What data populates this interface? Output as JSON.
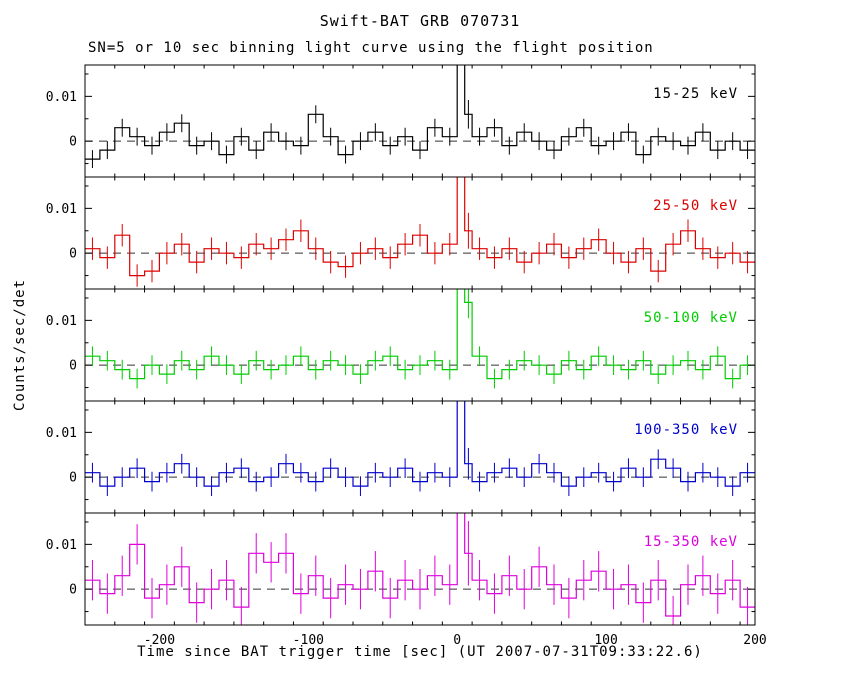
{
  "figure": {
    "title": "Swift-BAT GRB 070731",
    "subtitle": "SN=5 or 10 sec binning light curve using the flight position",
    "ylabel": "Counts/sec/det",
    "xlabel": "Time since BAT trigger time [sec] (UT 2007-07-31T09:33:22.6)"
  },
  "chart_data": {
    "type": "line",
    "style": "step-histogram light curves with vertical error bars, 5 stacked panels sharing the x axis",
    "xlim": [
      -250,
      200
    ],
    "ylim_per_panel": [
      -0.008,
      0.017
    ],
    "x_major_ticks": [
      -200,
      -100,
      0,
      100,
      200
    ],
    "x_minor_tick_step": 20,
    "y_major_ticks": [
      0,
      0.01
    ],
    "y_tick_labels": [
      "0",
      "0.01"
    ],
    "y_minor_ticks": [
      -0.005,
      0.005,
      0.015
    ],
    "zero_line": {
      "style": "dashed",
      "color": "#333333"
    },
    "bin_edges": [
      -250,
      -240,
      -230,
      -220,
      -210,
      -200,
      -190,
      -180,
      -170,
      -160,
      -150,
      -140,
      -130,
      -120,
      -110,
      -100,
      -90,
      -80,
      -70,
      -60,
      -50,
      -40,
      -30,
      -20,
      -10,
      0,
      5,
      10,
      20,
      30,
      40,
      50,
      60,
      70,
      80,
      90,
      100,
      110,
      120,
      130,
      140,
      150,
      160,
      170,
      180,
      190,
      200
    ],
    "panels": [
      {
        "label": "15-25 keV",
        "color": "#000000",
        "error": 0.002,
        "values": [
          -0.004,
          -0.002,
          0.003,
          0.001,
          -0.001,
          0.002,
          0.004,
          -0.001,
          0.0,
          -0.003,
          0.001,
          -0.002,
          0.002,
          0.0,
          -0.001,
          0.006,
          0.001,
          -0.003,
          0.0,
          0.002,
          -0.001,
          0.001,
          -0.002,
          0.003,
          0.001,
          0.045,
          0.006,
          0.001,
          0.003,
          -0.001,
          0.002,
          0.0,
          -0.002,
          0.001,
          0.003,
          -0.001,
          0.0,
          0.002,
          -0.003,
          0.001,
          0.0,
          -0.001,
          0.002,
          -0.002,
          0.0,
          -0.002
        ]
      },
      {
        "label": "25-50 keV",
        "color": "#dd0000",
        "error": 0.0025,
        "values": [
          0.001,
          -0.001,
          0.004,
          -0.005,
          -0.004,
          0.0,
          0.002,
          -0.002,
          0.001,
          0.0,
          -0.001,
          0.002,
          0.001,
          0.003,
          0.005,
          0.001,
          -0.002,
          -0.003,
          0.0,
          0.001,
          -0.001,
          0.002,
          0.004,
          0.0,
          0.002,
          0.05,
          0.005,
          0.001,
          -0.001,
          0.001,
          -0.002,
          0.0,
          0.002,
          -0.001,
          0.001,
          0.003,
          0.0,
          -0.002,
          0.001,
          -0.004,
          0.002,
          0.005,
          0.001,
          -0.001,
          0.0,
          -0.002
        ]
      },
      {
        "label": "50-100 keV",
        "color": "#00cc00",
        "error": 0.0022,
        "values": [
          0.002,
          0.001,
          -0.001,
          -0.003,
          0.0,
          -0.002,
          0.001,
          -0.001,
          0.002,
          0.0,
          -0.002,
          0.001,
          -0.001,
          0.0,
          0.002,
          -0.001,
          0.001,
          0.0,
          -0.002,
          0.001,
          0.002,
          -0.001,
          0.0,
          0.001,
          -0.001,
          0.04,
          0.014,
          0.002,
          -0.003,
          -0.001,
          0.001,
          0.0,
          -0.002,
          0.001,
          -0.001,
          0.002,
          0.0,
          -0.001,
          0.001,
          -0.002,
          0.0,
          0.001,
          -0.001,
          0.002,
          -0.003,
          0.0
        ]
      },
      {
        "label": "100-350 keV",
        "color": "#0000cc",
        "error": 0.0022,
        "values": [
          0.001,
          -0.002,
          0.0,
          0.002,
          -0.001,
          0.001,
          0.003,
          0.0,
          -0.002,
          0.001,
          0.002,
          -0.001,
          0.0,
          0.003,
          0.001,
          -0.001,
          0.002,
          0.0,
          -0.002,
          0.001,
          0.0,
          0.002,
          -0.001,
          0.001,
          0.0,
          0.045,
          0.003,
          -0.001,
          0.001,
          0.002,
          0.0,
          0.003,
          0.001,
          -0.002,
          0.0,
          0.001,
          -0.001,
          0.002,
          0.0,
          0.004,
          0.002,
          -0.001,
          0.001,
          0.0,
          -0.002,
          0.001
        ]
      },
      {
        "label": "15-350 keV",
        "color": "#dd00dd",
        "error": 0.0045,
        "values": [
          0.002,
          -0.001,
          0.003,
          0.01,
          -0.002,
          0.001,
          0.005,
          -0.003,
          0.0,
          0.002,
          -0.004,
          0.008,
          0.006,
          0.008,
          -0.001,
          0.003,
          -0.002,
          0.001,
          0.0,
          0.004,
          -0.002,
          0.002,
          0.0,
          0.003,
          0.001,
          0.05,
          0.008,
          0.002,
          -0.001,
          0.003,
          0.0,
          0.005,
          0.001,
          -0.002,
          0.002,
          0.004,
          0.0,
          0.001,
          -0.003,
          0.002,
          -0.006,
          0.001,
          0.003,
          -0.001,
          0.002,
          -0.004
        ]
      }
    ]
  }
}
